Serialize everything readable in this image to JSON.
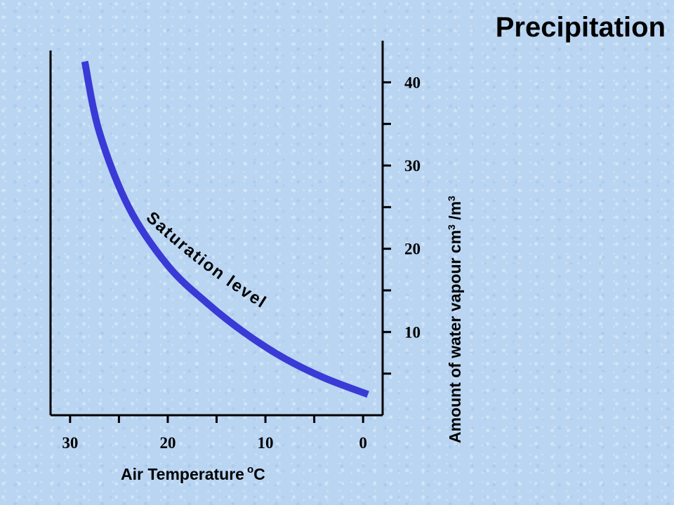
{
  "slide": {
    "title": "Precipitation"
  },
  "chart_data": {
    "type": "line",
    "title": "Precipitation",
    "xlabel": "Air Temperature",
    "xlabel_unit": "oC",
    "ylabel": "Amount of water vapour cm3 /m3",
    "xlim": [
      32,
      -2
    ],
    "ylim": [
      0,
      45
    ],
    "x_axis_reversed": true,
    "y_axis_position": "right",
    "xticks": [
      30,
      20,
      10,
      0
    ],
    "yticks": [
      10,
      20,
      30,
      40
    ],
    "grid": false,
    "series": [
      {
        "name": "Saturation level",
        "color": "#3a3ad6",
        "x": [
          28.5,
          27.0,
          24.0,
          20.0,
          16.0,
          12.0,
          8.0,
          4.0,
          -0.5
        ],
        "y": [
          42.5,
          34.0,
          25.0,
          18.0,
          13.5,
          9.8,
          6.8,
          4.5,
          2.5
        ]
      }
    ]
  }
}
